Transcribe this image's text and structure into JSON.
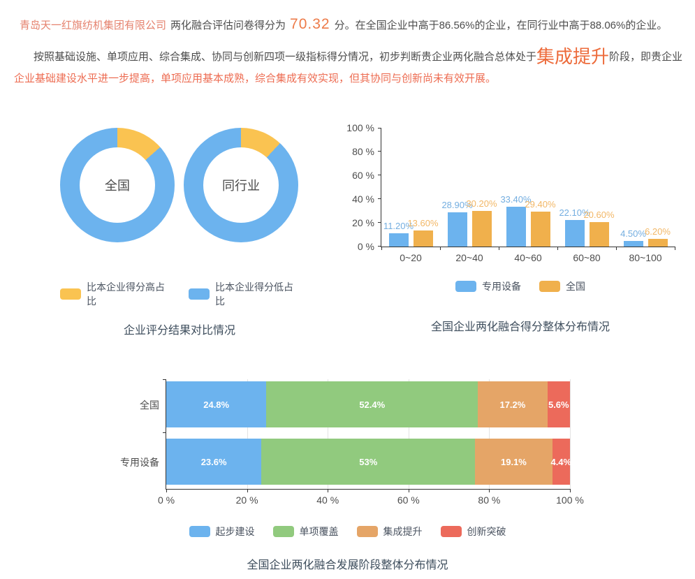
{
  "colors": {
    "company": "#E5826E",
    "score": "#ED7B49",
    "stage": "#ED6B3B",
    "highlight": "#ED6C52",
    "body_text": "#4D4D4D",
    "title": "#3D4D5C",
    "legend_text": "#4A5360",
    "axis_text": "#4D4D4D"
  },
  "report": {
    "company": "青岛天一红旗纺机集团有限公司",
    "score_prefix": "两化融合评估问卷得分为",
    "score": "70.32",
    "score_suffix": "分。在全国企业中高于86.56%的企业，在同行业中高于88.06%的企业。",
    "analysis_part1": "按照基础设施、单项应用、综合集成、协同与创新四项一级指标得分情况，初步判断贵企业两化融合总体处于",
    "stage": "集成提升",
    "analysis_part2": "阶段，即贵企业",
    "analysis_highlight": "企业基础建设水平进一步提高，单项应用基本成熟，综合集成有效实现，但其协同与创新尚未有效开展。"
  },
  "chart_data": [
    {
      "type": "pie",
      "variant": "double-donut",
      "title": "企业评分结果对比情况",
      "colors": {
        "high": "#FAC351",
        "low": "#6CB3EE"
      },
      "donuts": [
        {
          "label": "全国",
          "slices": [
            {
              "name": "比本企业得分高占比",
              "value": 13.44
            },
            {
              "name": "比本企业得分低占比",
              "value": 86.56
            }
          ]
        },
        {
          "label": "同行业",
          "slices": [
            {
              "name": "比本企业得分高占比",
              "value": 11.94
            },
            {
              "name": "比本企业得分低占比",
              "value": 88.06
            }
          ]
        }
      ],
      "legend": [
        {
          "label": "比本企业得分高占比",
          "color": "#FAC351"
        },
        {
          "label": "比本企业得分低占比",
          "color": "#6CB3EE"
        }
      ],
      "legend_position": "bottom"
    },
    {
      "type": "bar",
      "variant": "grouped-vertical",
      "title": "全国企业两化融合得分整体分布情况",
      "categories": [
        "0~20",
        "20~40",
        "40~60",
        "60~80",
        "80~100"
      ],
      "series": [
        {
          "name": "专用设备",
          "color": "#6CB3EE",
          "label_color": "#74AEE0",
          "values": [
            11.2,
            28.9,
            33.4,
            22.1,
            4.5
          ],
          "labels": [
            "11.20%",
            "28.90%",
            "33.40%",
            "22.10%",
            "4.50%"
          ]
        },
        {
          "name": "全国",
          "color": "#F0B04C",
          "label_color": "#F2B766",
          "values": [
            13.6,
            30.2,
            29.4,
            20.6,
            6.2
          ],
          "labels": [
            "13.60%",
            "30.20%",
            "29.40%",
            "20.60%",
            "6.20%"
          ]
        }
      ],
      "ylabels": [
        "0 %",
        "20 %",
        "40 %",
        "60 %",
        "80 %",
        "100 %"
      ],
      "ylim": [
        0,
        100
      ],
      "grid": false,
      "legend_position": "bottom"
    },
    {
      "type": "bar",
      "variant": "horizontal-stacked",
      "title": "全国企业两化融合发展阶段整体分布情况",
      "categories": [
        "全国",
        "专用设备"
      ],
      "series": [
        {
          "name": "起步建设",
          "color": "#6CB3EE",
          "values": [
            24.8,
            23.6
          ],
          "labels": [
            "24.8%",
            "23.6%"
          ]
        },
        {
          "name": "单项覆盖",
          "color": "#91CA7E",
          "values": [
            52.4,
            53
          ],
          "labels": [
            "52.4%",
            "53%"
          ]
        },
        {
          "name": "集成提升",
          "color": "#E5A567",
          "values": [
            17.2,
            19.1
          ],
          "labels": [
            "17.2%",
            "19.1%"
          ]
        },
        {
          "name": "创新突破",
          "color": "#EC6A5B",
          "values": [
            5.6,
            4.4
          ],
          "labels": [
            "5.6%",
            "4.4%"
          ]
        }
      ],
      "xlabels": [
        "0 %",
        "20 %",
        "40 %",
        "60 %",
        "80 %",
        "100 %"
      ],
      "xlim": [
        0,
        100
      ],
      "grid": true,
      "legend_position": "bottom"
    }
  ]
}
